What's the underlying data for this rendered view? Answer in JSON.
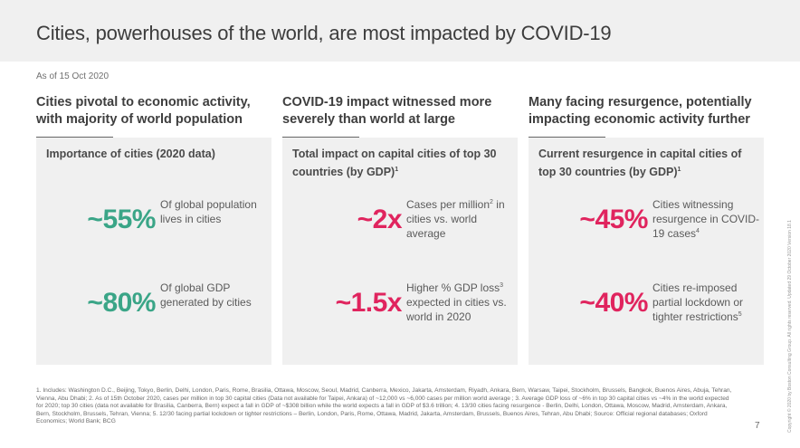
{
  "header": {
    "title": "Cities, powerhouses of the world, are most impacted by COVID-19"
  },
  "as_of": "As of 15 Oct 2020",
  "colors": {
    "green": "#3aa587",
    "pink": "#e0245e",
    "header_band": "#f0f0f0",
    "card_bg": "#f0f0f0"
  },
  "columns": [
    {
      "heading": "Cities pivotal to economic activity, with majority of world population",
      "card_title": "Importance of cities (2020 data)",
      "card_title_sup": "",
      "stats": [
        {
          "value": "~55%",
          "color": "green",
          "desc": "Of global population lives in cities",
          "sup": ""
        },
        {
          "value": "~80%",
          "color": "green",
          "desc": "Of global GDP generated by cities",
          "sup": ""
        }
      ]
    },
    {
      "heading": "COVID-19 impact witnessed more severely than world at large",
      "card_title": "Total impact on capital cities of top 30 countries (by GDP)",
      "card_title_sup": "1",
      "stats": [
        {
          "value": "~2x",
          "color": "pink",
          "desc_pre": "Cases per million",
          "sup": "2",
          "desc_post": " in cities vs. world average"
        },
        {
          "value": "~1.5x",
          "color": "pink",
          "desc_pre": "Higher % GDP loss",
          "sup": "3",
          "desc_post": " expected in cities vs. world in 2020"
        }
      ]
    },
    {
      "heading": "Many facing resurgence, potentially impacting economic activity further",
      "card_title": "Current resurgence in capital cities of top 30 countries (by GDP)",
      "card_title_sup": "1",
      "stats": [
        {
          "value": "~45%",
          "color": "pink",
          "desc_pre": "Cities witnessing resurgence in COVID-19 cases",
          "sup": "4",
          "desc_post": ""
        },
        {
          "value": "~40%",
          "color": "pink",
          "desc_pre": "Cities re-imposed partial lockdown or tighter restrictions",
          "sup": "5",
          "desc_post": ""
        }
      ]
    }
  ],
  "footnotes": "1. Includes: Washington D.C., Beijing, Tokyo, Berlin, Delhi, London, Paris, Rome, Brasilia, Ottawa, Moscow, Seoul, Madrid, Canberra, Mexico, Jakarta, Amsterdam, Riyadh, Ankara, Bern, Warsaw, Taipei, Stockholm, Brussels, Bangkok, Buenos Aires, Abuja, Tehran, Vienna, Abu Dhabi; 2. As of 15th October 2020, cases per million in top 30 capital cities (Data not available for Taipei, Ankara) of ~12,000 vs ~6,000 cases per million world average ; 3. Average GDP loss of ~6% in top 30 capital cities vs ~4% in the world expected for 2020; top 30 cities (data not available for Brasilia, Canberra, Bern) expect a fall in GDP of ~$308 billion while the world expects a fall in GDP of $3.6 trillion; 4. 13/30 cities facing resurgence - Berlin, Delhi, London, Ottawa, Moscow, Madrid, Amsterdam, Ankara, Bern, Stockholm, Brussels, Tehran, Vienna; 5. 12/30 facing partial lockdown or tighter restrictions – Berlin, London, Paris, Rome, Ottawa, Madrid, Jakarta, Amsterdam, Brussels, Buenos Aires, Tehran, Abu Dhabi;  Source: Official regional databases; Oxford Economics; World Bank; BCG",
  "page_number": "7",
  "copyright": "Copyright © 2020 by Boston Consulting Group. All rights reserved. Updated 29 October 2020 Version 18.1"
}
